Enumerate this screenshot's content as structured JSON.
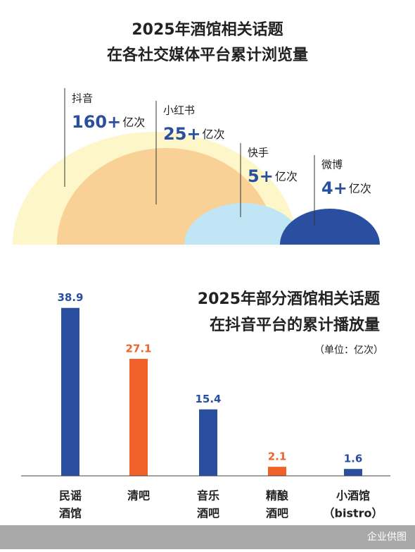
{
  "chart_data": [
    {
      "type": "semicircle",
      "title_lines": [
        "2025年酒馆相关话题",
        "在各社交媒体平台累计浏览量"
      ],
      "categories": [
        "抖音",
        "小红书",
        "快手",
        "微博"
      ],
      "values": [
        160,
        25,
        5,
        4
      ],
      "value_labels": [
        "160+",
        "25+",
        "5+",
        "4+"
      ],
      "unit": "亿次",
      "colors": [
        "#fdf6c8",
        "#f9d196",
        "#c0e6f6",
        "#2b4fa0"
      ]
    },
    {
      "type": "bar",
      "title_lines": [
        "2025年部分酒馆相关话题",
        "在抖音平台的累计播放量"
      ],
      "unit_note": "（单位：亿次）",
      "categories": [
        [
          "民谣",
          "酒馆"
        ],
        [
          "清吧"
        ],
        [
          "音乐",
          "酒吧"
        ],
        [
          "精酿",
          "酒吧"
        ],
        [
          "小酒馆",
          "（bistro）"
        ]
      ],
      "values": [
        38.9,
        27.1,
        15.4,
        2.1,
        1.6
      ],
      "colors": [
        "#2b4fa0",
        "#f0622a",
        "#2b4fa0",
        "#f0622a",
        "#2b4fa0"
      ],
      "ylim": [
        0,
        40
      ]
    }
  ],
  "footer": "企业供图"
}
